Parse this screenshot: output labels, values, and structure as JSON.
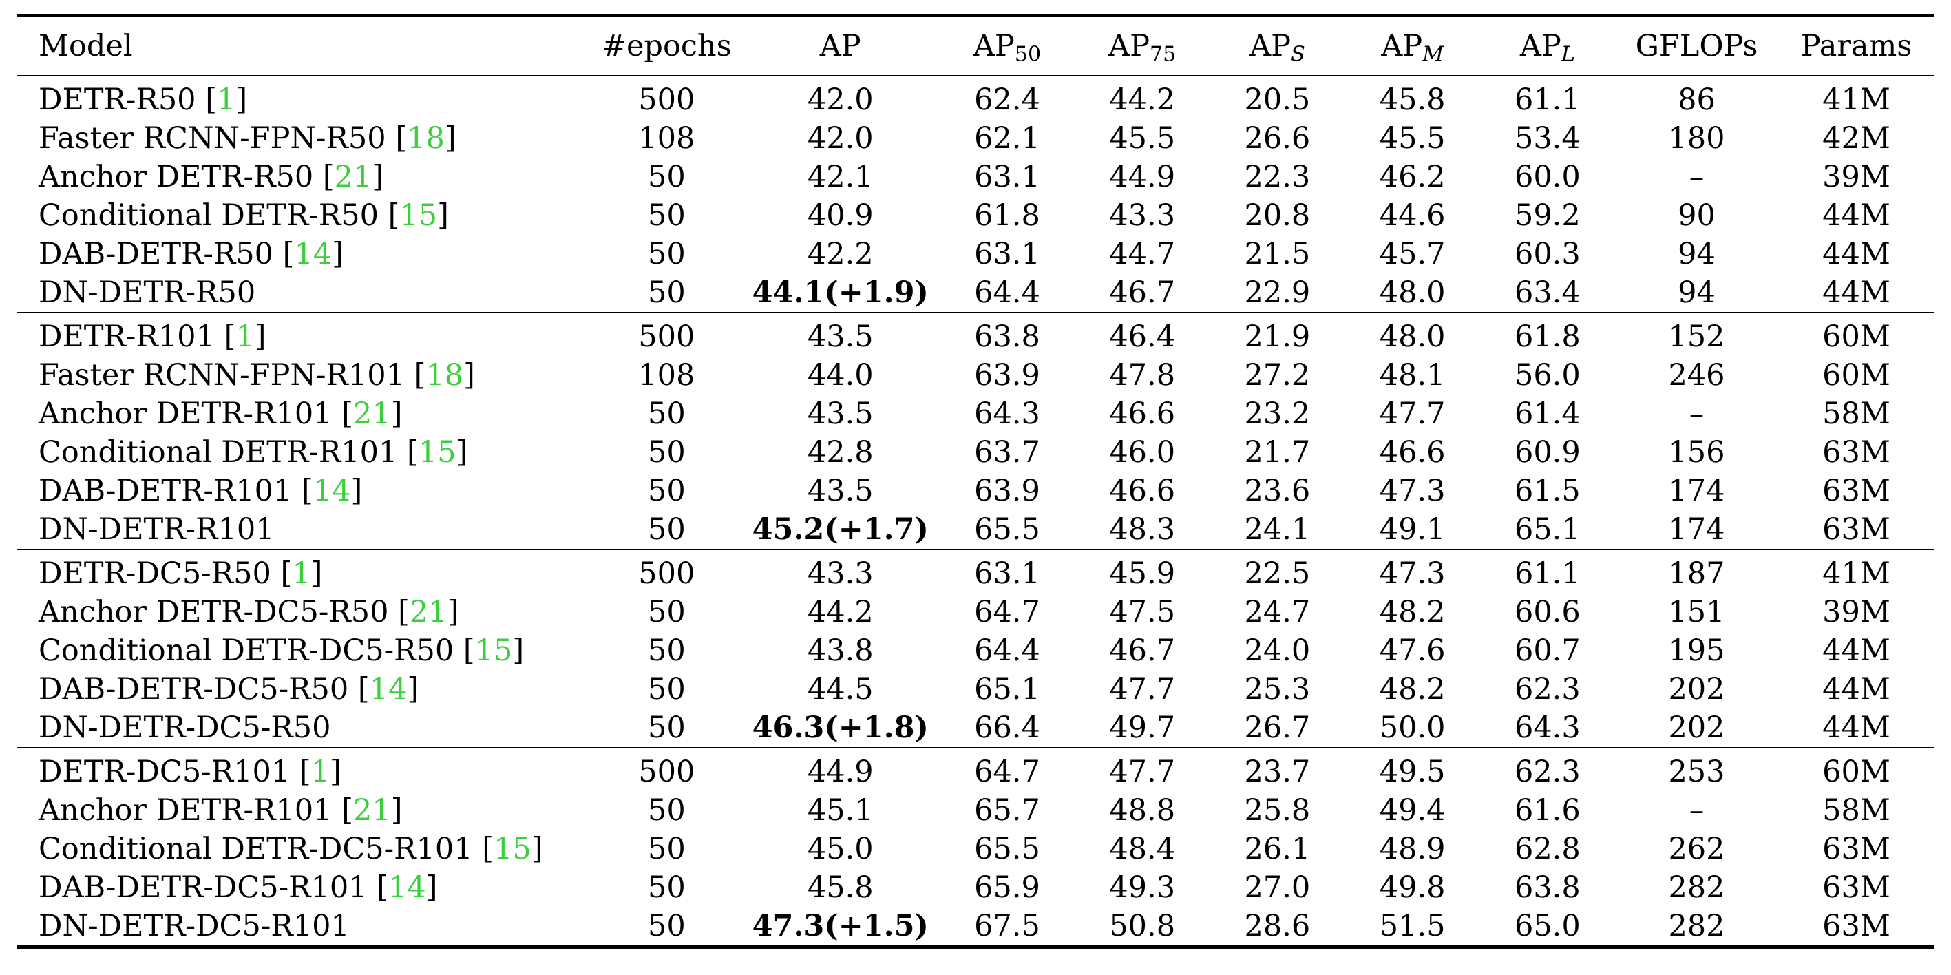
{
  "headers": {
    "model": "Model",
    "epochs": "#epochs",
    "ap": "AP",
    "ap50": {
      "base": "AP",
      "sub": "50"
    },
    "ap75": {
      "base": "AP",
      "sub": "75"
    },
    "aps": {
      "base": "AP",
      "sub": "S"
    },
    "apm": {
      "base": "AP",
      "sub": "M"
    },
    "apl": {
      "base": "AP",
      "sub": "L"
    },
    "gflops": "GFLOPs",
    "params": "Params"
  },
  "colors": {
    "citation": "#3ccf3c",
    "rule": "#000000"
  },
  "groups": [
    {
      "rows": [
        {
          "model": "DETR-R50",
          "cite": "1",
          "epochs": "500",
          "ap": "42.0",
          "ap_bold": false,
          "ap50": "62.4",
          "ap75": "44.2",
          "aps": "20.5",
          "apm": "45.8",
          "apl": "61.1",
          "gflops": "86",
          "params": "41M"
        },
        {
          "model": "Faster RCNN-FPN-R50",
          "cite": "18",
          "epochs": "108",
          "ap": "42.0",
          "ap_bold": false,
          "ap50": "62.1",
          "ap75": "45.5",
          "aps": "26.6",
          "apm": "45.5",
          "apl": "53.4",
          "gflops": "180",
          "params": "42M"
        },
        {
          "model": "Anchor DETR-R50",
          "cite": "21",
          "epochs": "50",
          "ap": "42.1",
          "ap_bold": false,
          "ap50": "63.1",
          "ap75": "44.9",
          "aps": "22.3",
          "apm": "46.2",
          "apl": "60.0",
          "gflops": "–",
          "params": "39M"
        },
        {
          "model": "Conditional DETR-R50",
          "cite": "15",
          "epochs": "50",
          "ap": "40.9",
          "ap_bold": false,
          "ap50": "61.8",
          "ap75": "43.3",
          "aps": "20.8",
          "apm": "44.6",
          "apl": "59.2",
          "gflops": "90",
          "params": "44M"
        },
        {
          "model": "DAB-DETR-R50",
          "cite": "14",
          "epochs": "50",
          "ap": "42.2",
          "ap_bold": false,
          "ap50": "63.1",
          "ap75": "44.7",
          "aps": "21.5",
          "apm": "45.7",
          "apl": "60.3",
          "gflops": "94",
          "params": "44M"
        },
        {
          "model": "DN-DETR-R50",
          "cite": "",
          "epochs": "50",
          "ap": "44.1(+1.9)",
          "ap_bold": true,
          "ap50": "64.4",
          "ap75": "46.7",
          "aps": "22.9",
          "apm": "48.0",
          "apl": "63.4",
          "gflops": "94",
          "params": "44M"
        }
      ]
    },
    {
      "rows": [
        {
          "model": "DETR-R101",
          "cite": "1",
          "epochs": "500",
          "ap": "43.5",
          "ap_bold": false,
          "ap50": "63.8",
          "ap75": "46.4",
          "aps": "21.9",
          "apm": "48.0",
          "apl": "61.8",
          "gflops": "152",
          "params": "60M"
        },
        {
          "model": "Faster RCNN-FPN-R101",
          "cite": "18",
          "epochs": "108",
          "ap": "44.0",
          "ap_bold": false,
          "ap50": "63.9",
          "ap75": "47.8",
          "aps": "27.2",
          "apm": "48.1",
          "apl": "56.0",
          "gflops": "246",
          "params": "60M"
        },
        {
          "model": "Anchor DETR-R101",
          "cite": "21",
          "epochs": "50",
          "ap": "43.5",
          "ap_bold": false,
          "ap50": "64.3",
          "ap75": "46.6",
          "aps": "23.2",
          "apm": "47.7",
          "apl": "61.4",
          "gflops": "–",
          "params": "58M"
        },
        {
          "model": "Conditional DETR-R101",
          "cite": "15",
          "epochs": "50",
          "ap": "42.8",
          "ap_bold": false,
          "ap50": "63.7",
          "ap75": "46.0",
          "aps": "21.7",
          "apm": "46.6",
          "apl": "60.9",
          "gflops": "156",
          "params": "63M"
        },
        {
          "model": "DAB-DETR-R101",
          "cite": "14",
          "epochs": "50",
          "ap": "43.5",
          "ap_bold": false,
          "ap50": "63.9",
          "ap75": "46.6",
          "aps": "23.6",
          "apm": "47.3",
          "apl": "61.5",
          "gflops": "174",
          "params": "63M"
        },
        {
          "model": "DN-DETR-R101",
          "cite": "",
          "epochs": "50",
          "ap": "45.2(+1.7)",
          "ap_bold": true,
          "ap50": "65.5",
          "ap75": "48.3",
          "aps": "24.1",
          "apm": "49.1",
          "apl": "65.1",
          "gflops": "174",
          "params": "63M"
        }
      ]
    },
    {
      "rows": [
        {
          "model": "DETR-DC5-R50",
          "cite": "1",
          "epochs": "500",
          "ap": "43.3",
          "ap_bold": false,
          "ap50": "63.1",
          "ap75": "45.9",
          "aps": "22.5",
          "apm": "47.3",
          "apl": "61.1",
          "gflops": "187",
          "params": "41M"
        },
        {
          "model": "Anchor DETR-DC5-R50",
          "cite": "21",
          "epochs": "50",
          "ap": "44.2",
          "ap_bold": false,
          "ap50": "64.7",
          "ap75": "47.5",
          "aps": "24.7",
          "apm": "48.2",
          "apl": "60.6",
          "gflops": "151",
          "params": "39M"
        },
        {
          "model": "Conditional DETR-DC5-R50",
          "cite": "15",
          "epochs": "50",
          "ap": "43.8",
          "ap_bold": false,
          "ap50": "64.4",
          "ap75": "46.7",
          "aps": "24.0",
          "apm": "47.6",
          "apl": "60.7",
          "gflops": "195",
          "params": "44M"
        },
        {
          "model": "DAB-DETR-DC5-R50",
          "cite": "14",
          "epochs": "50",
          "ap": "44.5",
          "ap_bold": false,
          "ap50": "65.1",
          "ap75": "47.7",
          "aps": "25.3",
          "apm": "48.2",
          "apl": "62.3",
          "gflops": "202",
          "params": "44M"
        },
        {
          "model": "DN-DETR-DC5-R50",
          "cite": "",
          "epochs": "50",
          "ap": "46.3(+1.8)",
          "ap_bold": true,
          "ap50": "66.4",
          "ap75": "49.7",
          "aps": "26.7",
          "apm": "50.0",
          "apl": "64.3",
          "gflops": "202",
          "params": "44M"
        }
      ]
    },
    {
      "rows": [
        {
          "model": "DETR-DC5-R101",
          "cite": "1",
          "epochs": "500",
          "ap": "44.9",
          "ap_bold": false,
          "ap50": "64.7",
          "ap75": "47.7",
          "aps": "23.7",
          "apm": "49.5",
          "apl": "62.3",
          "gflops": "253",
          "params": "60M"
        },
        {
          "model": "Anchor DETR-R101",
          "cite": "21",
          "epochs": "50",
          "ap": "45.1",
          "ap_bold": false,
          "ap50": "65.7",
          "ap75": "48.8",
          "aps": "25.8",
          "apm": "49.4",
          "apl": "61.6",
          "gflops": "–",
          "params": "58M"
        },
        {
          "model": "Conditional DETR-DC5-R101",
          "cite": "15",
          "epochs": "50",
          "ap": "45.0",
          "ap_bold": false,
          "ap50": "65.5",
          "ap75": "48.4",
          "aps": "26.1",
          "apm": "48.9",
          "apl": "62.8",
          "gflops": "262",
          "params": "63M"
        },
        {
          "model": "DAB-DETR-DC5-R101",
          "cite": "14",
          "epochs": "50",
          "ap": "45.8",
          "ap_bold": false,
          "ap50": "65.9",
          "ap75": "49.3",
          "aps": "27.0",
          "apm": "49.8",
          "apl": "63.8",
          "gflops": "282",
          "params": "63M"
        },
        {
          "model": "DN-DETR-DC5-R101",
          "cite": "",
          "epochs": "50",
          "ap": "47.3(+1.5)",
          "ap_bold": true,
          "ap50": "67.5",
          "ap75": "50.8",
          "aps": "28.6",
          "apm": "51.5",
          "apl": "65.0",
          "gflops": "282",
          "params": "63M"
        }
      ]
    }
  ]
}
